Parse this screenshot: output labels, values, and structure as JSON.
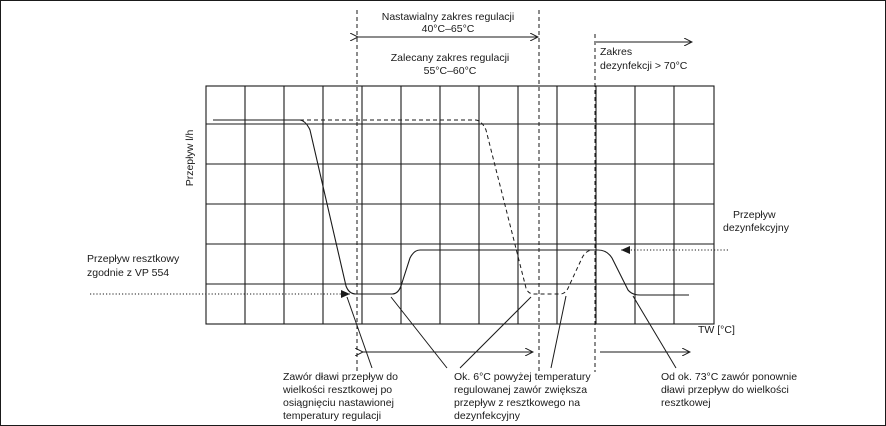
{
  "ranges": {
    "adjustable": [
      "Nastawialny zakres regulacji",
      "40°C–65°C"
    ],
    "recommended": [
      "Zalecany zakres regulacji",
      "55°C–60°C"
    ],
    "disinfection": [
      "Zakres",
      "dezynfekcji > 70°C"
    ]
  },
  "axes": {
    "ylabel": "Przepływ l/h",
    "xlabel": "TW [°C]"
  },
  "labels": {
    "residual_flow": [
      "Przepływ resztkowy",
      "zgodnie z VP 554"
    ],
    "disinfection_flow": [
      "Przepływ",
      "dezynfekcyjny"
    ]
  },
  "notes": {
    "note1": [
      "Zawór dławi przepływ do",
      "wielkości resztkowej po",
      "osiągnięciu nastawionej",
      "temperatury regulacji"
    ],
    "note2": [
      "Ok. 6°C powyżej temperatury",
      "regulowanej zawór zwiększa",
      "przepływ z resztkowego na",
      "dezynfekcyjny"
    ],
    "note3": [
      "Od ok. 73°C zawór ponownie",
      "dławi przepływ do wielkości",
      "resztkowej"
    ]
  }
}
